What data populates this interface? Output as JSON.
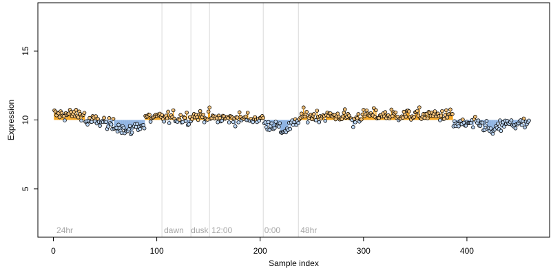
{
  "chart_data": {
    "type": "scatter",
    "title": "",
    "xlabel": "Sample index",
    "ylabel": "Expression",
    "xlim": [
      -15,
      480
    ],
    "ylim": [
      1.5,
      18.5
    ],
    "xticks": [
      0,
      100,
      200,
      300,
      400
    ],
    "yticks": [
      5,
      10,
      15
    ],
    "baseline": 10,
    "grid": false,
    "legend": "none",
    "colors": {
      "above_bar": "#f5a623",
      "below_bar": "#8fb4e3",
      "point_edge": "#000000",
      "point_fill_above": "#f4c27a",
      "point_fill_below": "#b9d3f1",
      "phase_line": "#d9d9d9",
      "phase_label": "#a6a6a6"
    },
    "phase_lines": [
      105,
      133,
      151,
      203,
      237
    ],
    "phase_labels": [
      {
        "x": 3,
        "text": "24hr"
      },
      {
        "x": 107,
        "text": "dawn"
      },
      {
        "x": 133,
        "text": "dusk"
      },
      {
        "x": 153,
        "text": "12:00"
      },
      {
        "x": 204,
        "text": "0:00"
      },
      {
        "x": 239,
        "text": "48hr"
      }
    ],
    "blocks": [
      {
        "start": 1,
        "end": 30,
        "level": 10.4
      },
      {
        "start": 31,
        "end": 50,
        "level": 9.9
      },
      {
        "start": 51,
        "end": 88,
        "level": 9.6
      },
      {
        "start": 89,
        "end": 133,
        "level": 10.15
      },
      {
        "start": 134,
        "end": 152,
        "level": 10.3
      },
      {
        "start": 153,
        "end": 203,
        "level": 10.1
      },
      {
        "start": 204,
        "end": 237,
        "level": 9.7
      },
      {
        "start": 238,
        "end": 300,
        "level": 10.3
      },
      {
        "start": 301,
        "end": 386,
        "level": 10.35
      },
      {
        "start": 387,
        "end": 460,
        "level": 9.7
      }
    ],
    "n_points": 460,
    "noise_sd": 0.22,
    "dips": [
      {
        "center": 72,
        "width": 5,
        "depth": -0.5
      },
      {
        "center": 222,
        "width": 6,
        "depth": -0.5
      },
      {
        "center": 290,
        "width": 2,
        "depth": -0.6
      },
      {
        "center": 425,
        "width": 6,
        "depth": -0.6
      }
    ]
  }
}
